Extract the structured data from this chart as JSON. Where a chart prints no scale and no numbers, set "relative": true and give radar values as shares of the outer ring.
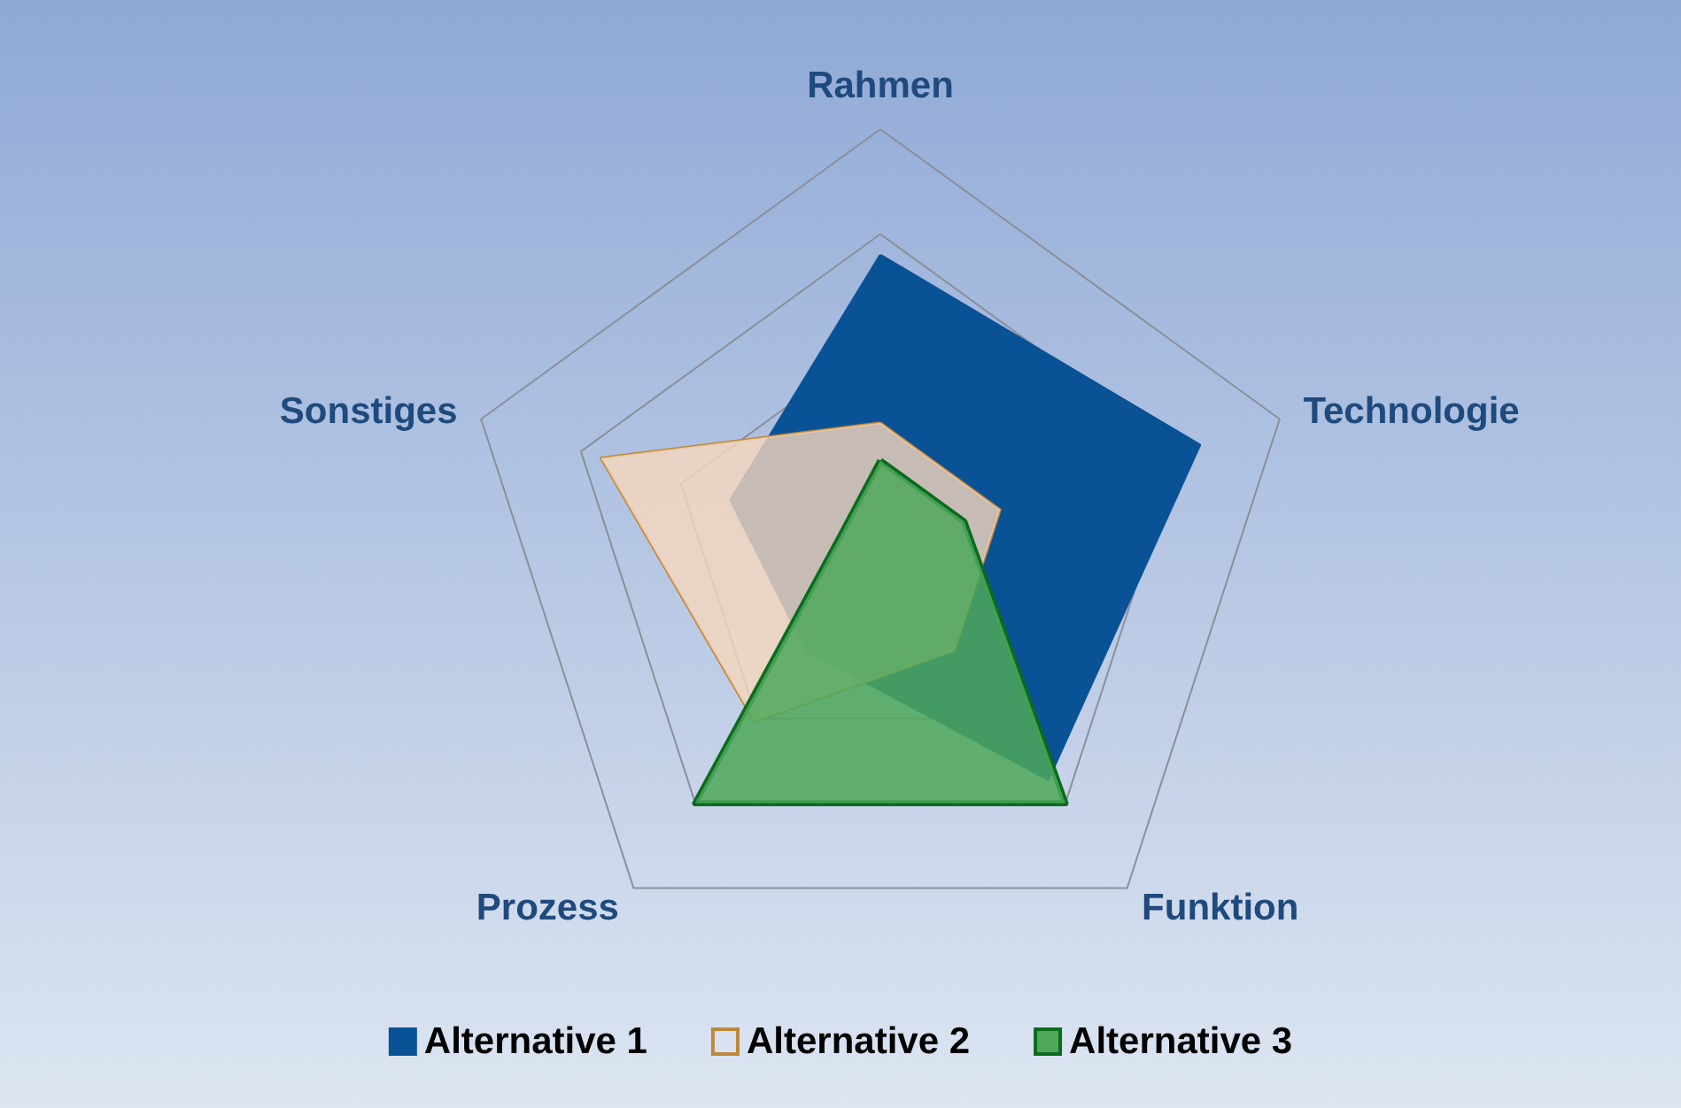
{
  "chart_data": {
    "type": "radar",
    "relative": true,
    "categories": [
      "Rahmen",
      "Technologie",
      "Funktion",
      "Prozess",
      "Sonstiges"
    ],
    "series": [
      {
        "name": "Alternative 1",
        "color": "#0a5296",
        "values": [
          0.7,
          0.8,
          0.68,
          0.3,
          0.375
        ]
      },
      {
        "name": "Alternative 2",
        "color": "#c0873a",
        "values": [
          0.3,
          0.3,
          0.3,
          0.51,
          0.7
        ]
      },
      {
        "name": "Alternative 3",
        "color": "#0b6b1e",
        "values": [
          0.21,
          0.21,
          0.75,
          0.75,
          0.1
        ]
      }
    ],
    "legend": "bottom"
  }
}
